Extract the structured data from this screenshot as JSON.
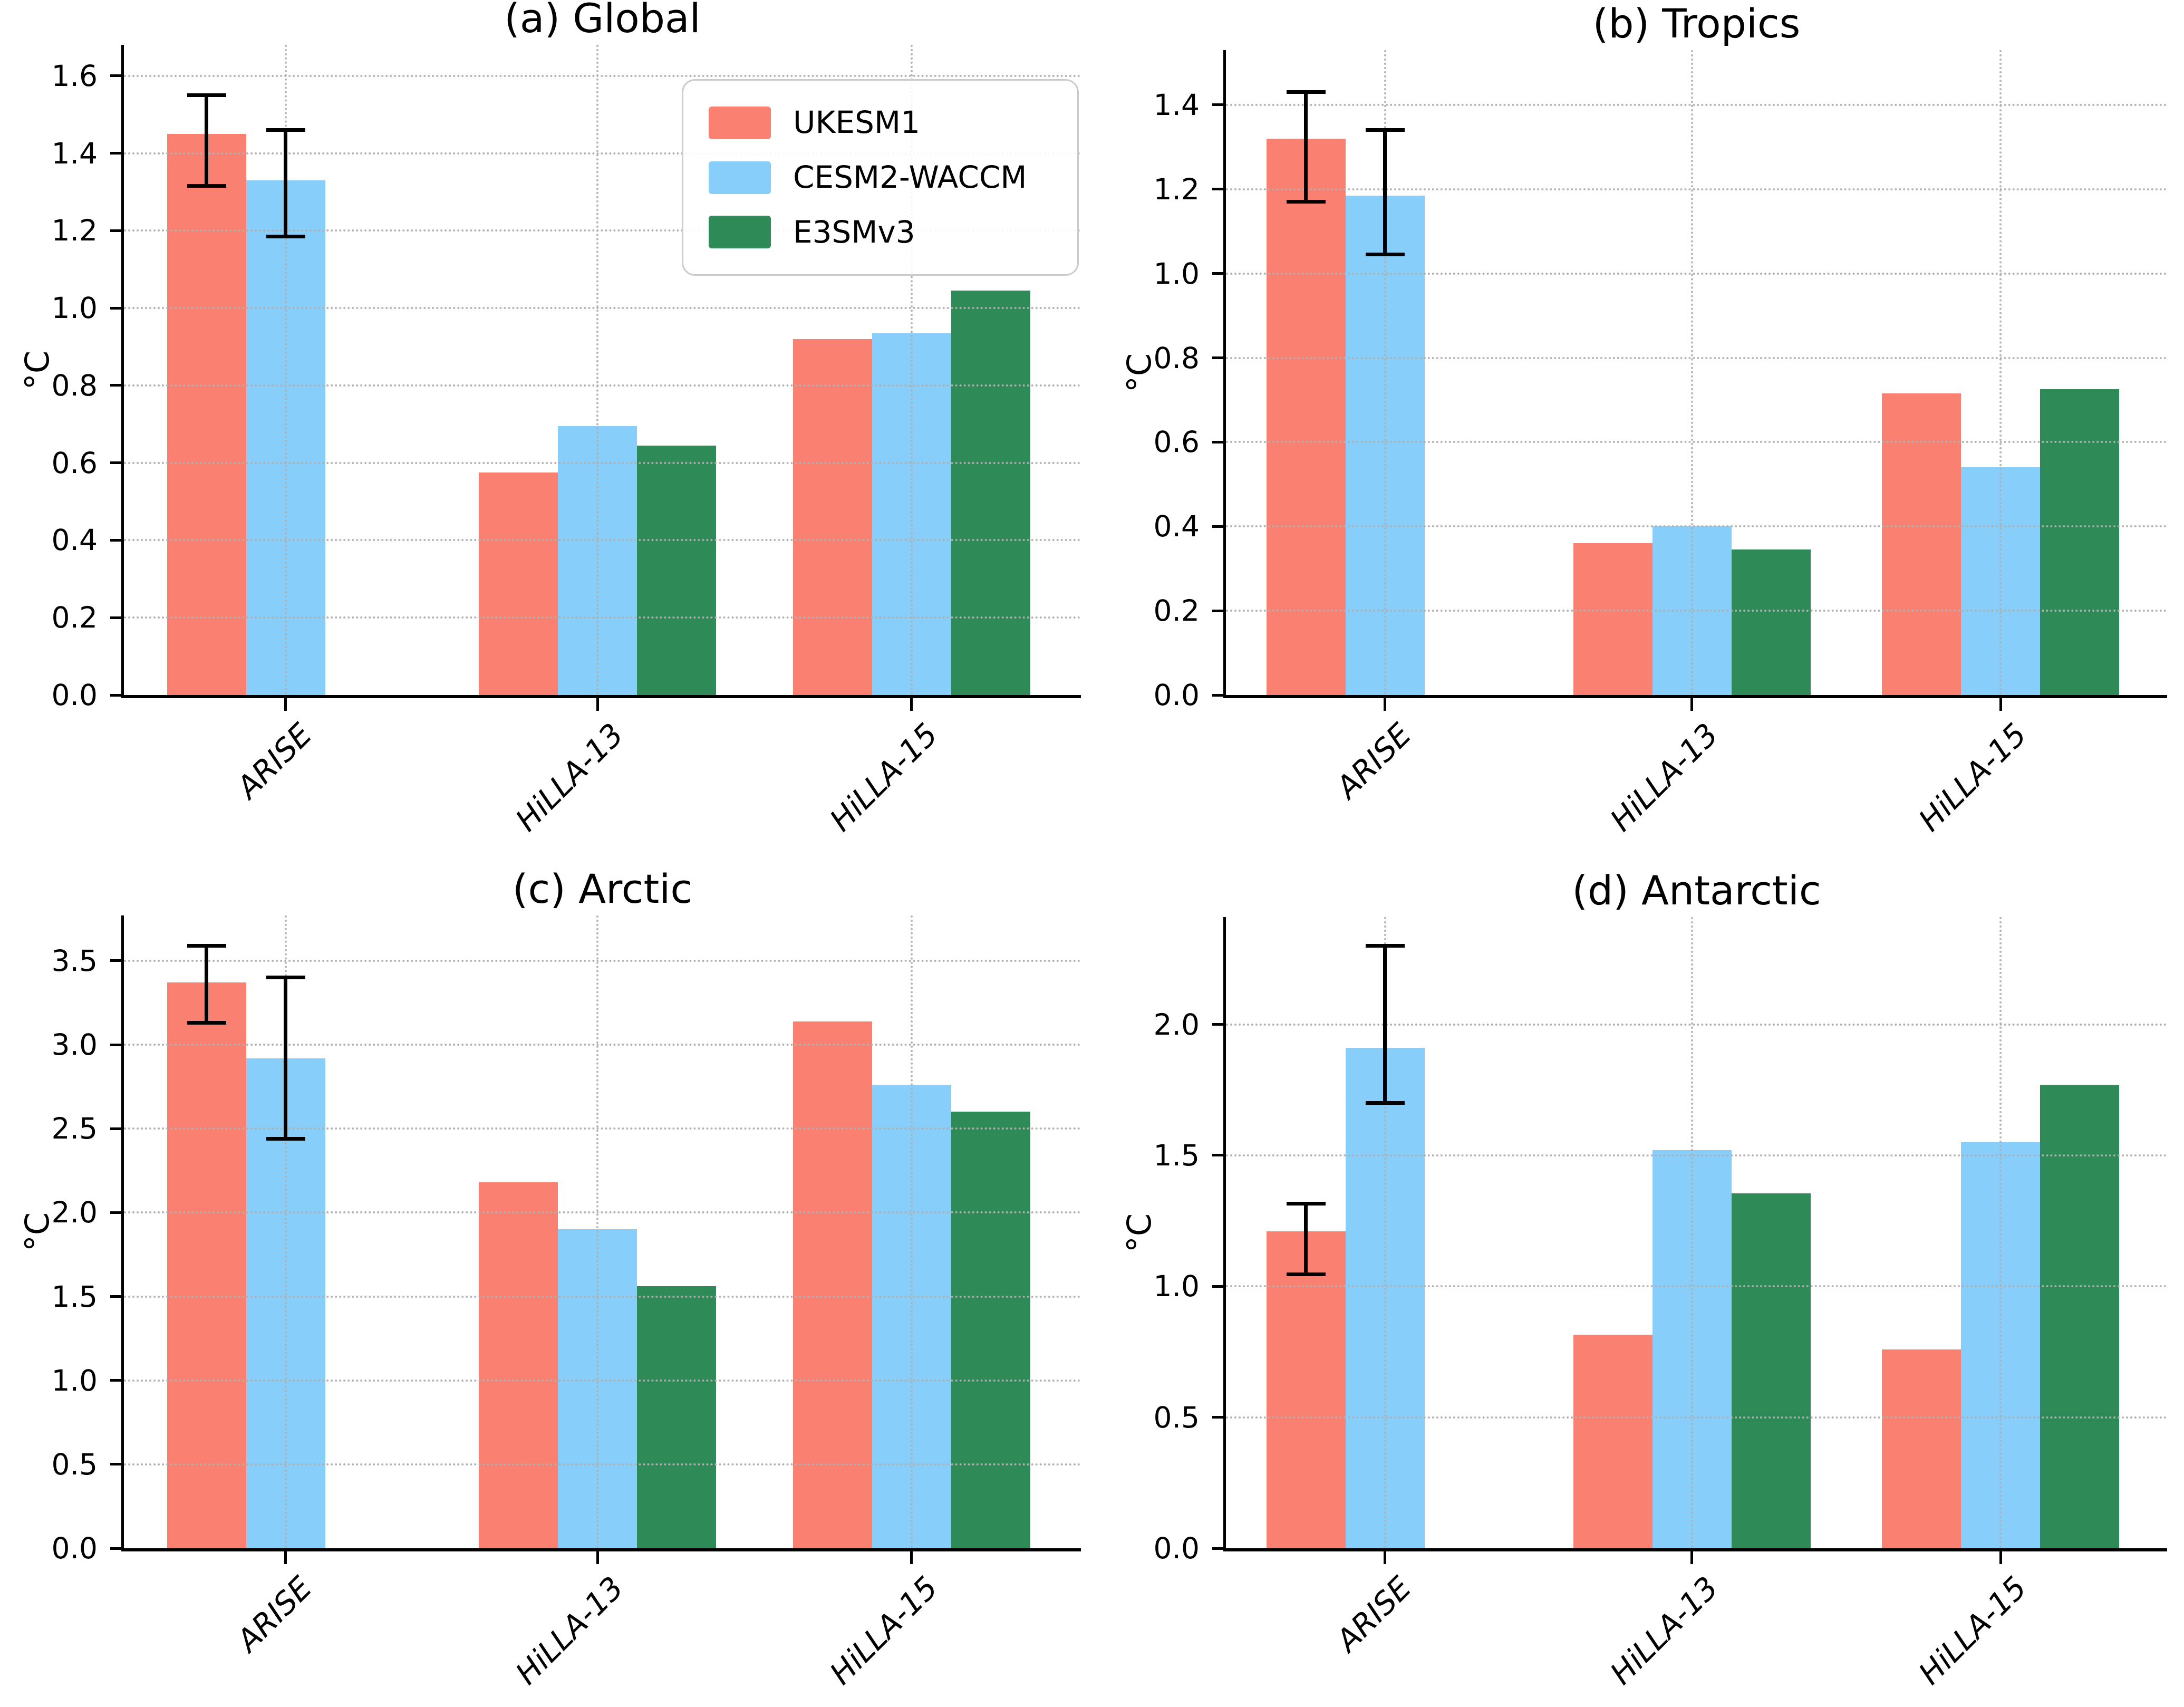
{
  "legend": {
    "items": [
      {
        "label": "UKESM1",
        "color": "#FA8072"
      },
      {
        "label": "CESM2-WACCM",
        "color": "#87CEFA"
      },
      {
        "label": "E3SMv3",
        "color": "#2E8B57"
      }
    ],
    "position": "upper-right-inside-panel-a"
  },
  "colors": {
    "grid": "#b0b0b0",
    "axis": "#000000",
    "error_bar": "#000000",
    "background": "#ffffff"
  },
  "chart_data": [
    {
      "type": "bar",
      "panel": "a",
      "title": "(a) Global",
      "ylabel": "°C",
      "categories": [
        "ARISE",
        "HiLLA-13",
        "HiLLA-15"
      ],
      "yticks": [
        0.0,
        0.2,
        0.4,
        0.6,
        0.8,
        1.0,
        1.2,
        1.4,
        1.6
      ],
      "ytick_labels": [
        "0.0",
        "0.2",
        "0.4",
        "0.6",
        "0.8",
        "1.0",
        "1.2",
        "1.4",
        "1.6"
      ],
      "ylim": [
        0,
        1.68
      ],
      "grid": "dotted",
      "series": [
        {
          "name": "UKESM1",
          "values": [
            1.45,
            0.575,
            0.92
          ],
          "error_bars": [
            {
              "low": 1.315,
              "high": 1.55
            },
            null,
            null
          ]
        },
        {
          "name": "CESM2-WACCM",
          "values": [
            1.33,
            0.695,
            0.935
          ],
          "error_bars": [
            {
              "low": 1.185,
              "high": 1.46
            },
            null,
            null
          ]
        },
        {
          "name": "E3SMv3",
          "values": [
            null,
            0.645,
            1.045
          ],
          "error_bars": [
            null,
            null,
            null
          ]
        }
      ]
    },
    {
      "type": "bar",
      "panel": "b",
      "title": "(b) Tropics",
      "ylabel": "°C",
      "categories": [
        "ARISE",
        "HiLLA-13",
        "HiLLA-15"
      ],
      "yticks": [
        0.0,
        0.2,
        0.4,
        0.6,
        0.8,
        1.0,
        1.2,
        1.4
      ],
      "ytick_labels": [
        "0.0",
        "0.2",
        "0.4",
        "0.6",
        "0.8",
        "1.0",
        "1.2",
        "1.4"
      ],
      "ylim": [
        0,
        1.53
      ],
      "grid": "dotted",
      "series": [
        {
          "name": "UKESM1",
          "values": [
            1.32,
            0.36,
            0.715
          ],
          "error_bars": [
            {
              "low": 1.17,
              "high": 1.43
            },
            null,
            null
          ]
        },
        {
          "name": "CESM2-WACCM",
          "values": [
            1.185,
            0.4,
            0.54
          ],
          "error_bars": [
            {
              "low": 1.045,
              "high": 1.34
            },
            null,
            null
          ]
        },
        {
          "name": "E3SMv3",
          "values": [
            null,
            0.345,
            0.725
          ],
          "error_bars": [
            null,
            null,
            null
          ]
        }
      ]
    },
    {
      "type": "bar",
      "panel": "c",
      "title": "(c) Arctic",
      "ylabel": "°C",
      "categories": [
        "ARISE",
        "HiLLA-13",
        "HiLLA-15"
      ],
      "yticks": [
        0.0,
        0.5,
        1.0,
        1.5,
        2.0,
        2.5,
        3.0,
        3.5
      ],
      "ytick_labels": [
        "0.0",
        "0.5",
        "1.0",
        "1.5",
        "2.0",
        "2.5",
        "3.0",
        "3.5"
      ],
      "ylim": [
        0,
        3.77
      ],
      "grid": "dotted",
      "series": [
        {
          "name": "UKESM1",
          "values": [
            3.37,
            2.18,
            3.14
          ],
          "error_bars": [
            {
              "low": 3.13,
              "high": 3.59
            },
            null,
            null
          ]
        },
        {
          "name": "CESM2-WACCM",
          "values": [
            2.92,
            1.9,
            2.76
          ],
          "error_bars": [
            {
              "low": 2.44,
              "high": 3.4
            },
            null,
            null
          ]
        },
        {
          "name": "E3SMv3",
          "values": [
            null,
            1.56,
            2.6
          ],
          "error_bars": [
            null,
            null,
            null
          ]
        }
      ]
    },
    {
      "type": "bar",
      "panel": "d",
      "title": "(d) Antarctic",
      "ylabel": "°C",
      "categories": [
        "ARISE",
        "HiLLA-13",
        "HiLLA-15"
      ],
      "yticks": [
        0.0,
        0.5,
        1.0,
        1.5,
        2.0
      ],
      "ytick_labels": [
        "0.0",
        "0.5",
        "1.0",
        "1.5",
        "2.0"
      ],
      "ylim": [
        0,
        2.41
      ],
      "grid": "dotted",
      "series": [
        {
          "name": "UKESM1",
          "values": [
            1.21,
            0.815,
            0.76
          ],
          "error_bars": [
            {
              "low": 1.045,
              "high": 1.315
            },
            null,
            null
          ]
        },
        {
          "name": "CESM2-WACCM",
          "values": [
            1.91,
            1.52,
            1.55
          ],
          "error_bars": [
            {
              "low": 1.7,
              "high": 2.3
            },
            null,
            null
          ]
        },
        {
          "name": "E3SMv3",
          "values": [
            null,
            1.355,
            1.77
          ],
          "error_bars": [
            null,
            null,
            null
          ]
        }
      ]
    }
  ]
}
